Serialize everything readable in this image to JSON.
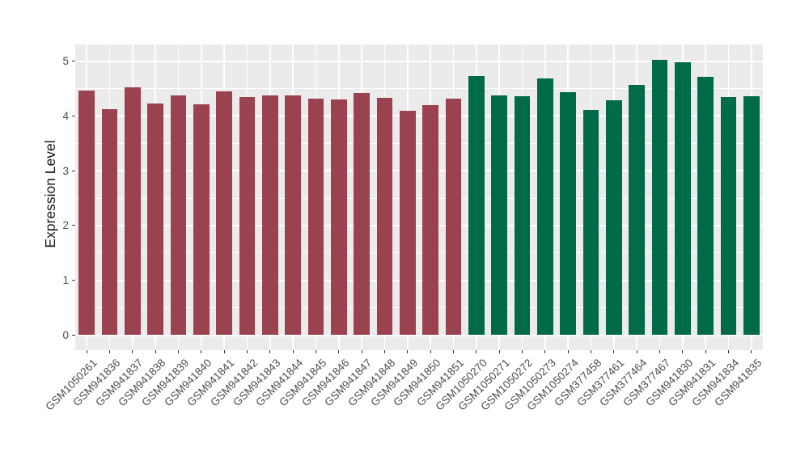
{
  "chart_data": {
    "type": "bar",
    "title": "",
    "xlabel": "",
    "ylabel": "Expression Level",
    "y_ticks": [
      0,
      1,
      2,
      3,
      4,
      5
    ],
    "y_minor_ticks": [
      0.5,
      1.5,
      2.5,
      3.5,
      4.5
    ],
    "ylim": [
      0,
      5.3
    ],
    "grid": true,
    "legend_position": "none",
    "x_tick_angle": 45,
    "categories": [
      "GSM1050261",
      "GSM941836",
      "GSM941837",
      "GSM941838",
      "GSM941839",
      "GSM941840",
      "GSM941841",
      "GSM941842",
      "GSM941843",
      "GSM941844",
      "GSM941845",
      "GSM941846",
      "GSM941847",
      "GSM941848",
      "GSM941849",
      "GSM941850",
      "GSM941851",
      "GSM1050270",
      "GSM1050271",
      "GSM1050272",
      "GSM1050273",
      "GSM1050274",
      "GSM377458",
      "GSM377461",
      "GSM377464",
      "GSM377467",
      "GSM941830",
      "GSM941831",
      "GSM941834",
      "GSM941835"
    ],
    "bars": [
      {
        "id": "GSM1050261",
        "value": 4.46,
        "group": "A"
      },
      {
        "id": "GSM941836",
        "value": 4.12,
        "group": "A"
      },
      {
        "id": "GSM941837",
        "value": 4.52,
        "group": "A"
      },
      {
        "id": "GSM941838",
        "value": 4.22,
        "group": "A"
      },
      {
        "id": "GSM941839",
        "value": 4.37,
        "group": "A"
      },
      {
        "id": "GSM941840",
        "value": 4.21,
        "group": "A"
      },
      {
        "id": "GSM941841",
        "value": 4.44,
        "group": "A"
      },
      {
        "id": "GSM941842",
        "value": 4.34,
        "group": "A"
      },
      {
        "id": "GSM941843",
        "value": 4.38,
        "group": "A"
      },
      {
        "id": "GSM941844",
        "value": 4.37,
        "group": "A"
      },
      {
        "id": "GSM941845",
        "value": 4.32,
        "group": "A"
      },
      {
        "id": "GSM941846",
        "value": 4.3,
        "group": "A"
      },
      {
        "id": "GSM941847",
        "value": 4.42,
        "group": "A"
      },
      {
        "id": "GSM941848",
        "value": 4.33,
        "group": "A"
      },
      {
        "id": "GSM941849",
        "value": 4.1,
        "group": "A"
      },
      {
        "id": "GSM941850",
        "value": 4.2,
        "group": "A"
      },
      {
        "id": "GSM941851",
        "value": 4.31,
        "group": "A"
      },
      {
        "id": "GSM1050270",
        "value": 4.72,
        "group": "B"
      },
      {
        "id": "GSM1050271",
        "value": 4.37,
        "group": "B"
      },
      {
        "id": "GSM1050272",
        "value": 4.36,
        "group": "B"
      },
      {
        "id": "GSM1050273",
        "value": 4.68,
        "group": "B"
      },
      {
        "id": "GSM1050274",
        "value": 4.43,
        "group": "B"
      },
      {
        "id": "GSM377458",
        "value": 4.11,
        "group": "B"
      },
      {
        "id": "GSM377461",
        "value": 4.29,
        "group": "B"
      },
      {
        "id": "GSM377464",
        "value": 4.56,
        "group": "B"
      },
      {
        "id": "GSM377467",
        "value": 5.02,
        "group": "B"
      },
      {
        "id": "GSM941830",
        "value": 4.98,
        "group": "B"
      },
      {
        "id": "GSM941831",
        "value": 4.71,
        "group": "B"
      },
      {
        "id": "GSM941834",
        "value": 4.34,
        "group": "B"
      },
      {
        "id": "GSM941835",
        "value": 4.36,
        "group": "B"
      }
    ],
    "group_colors": {
      "A": "#9B4250",
      "B": "#016A49"
    }
  },
  "style": {
    "background": "#FFFFFF",
    "panel_bg": "#EBEBEB",
    "grid_color": "#FFFFFF",
    "tick_color": "#333333",
    "tick_label_color": "#4D4D4D",
    "axis_title_color": "#1A1A1A"
  }
}
